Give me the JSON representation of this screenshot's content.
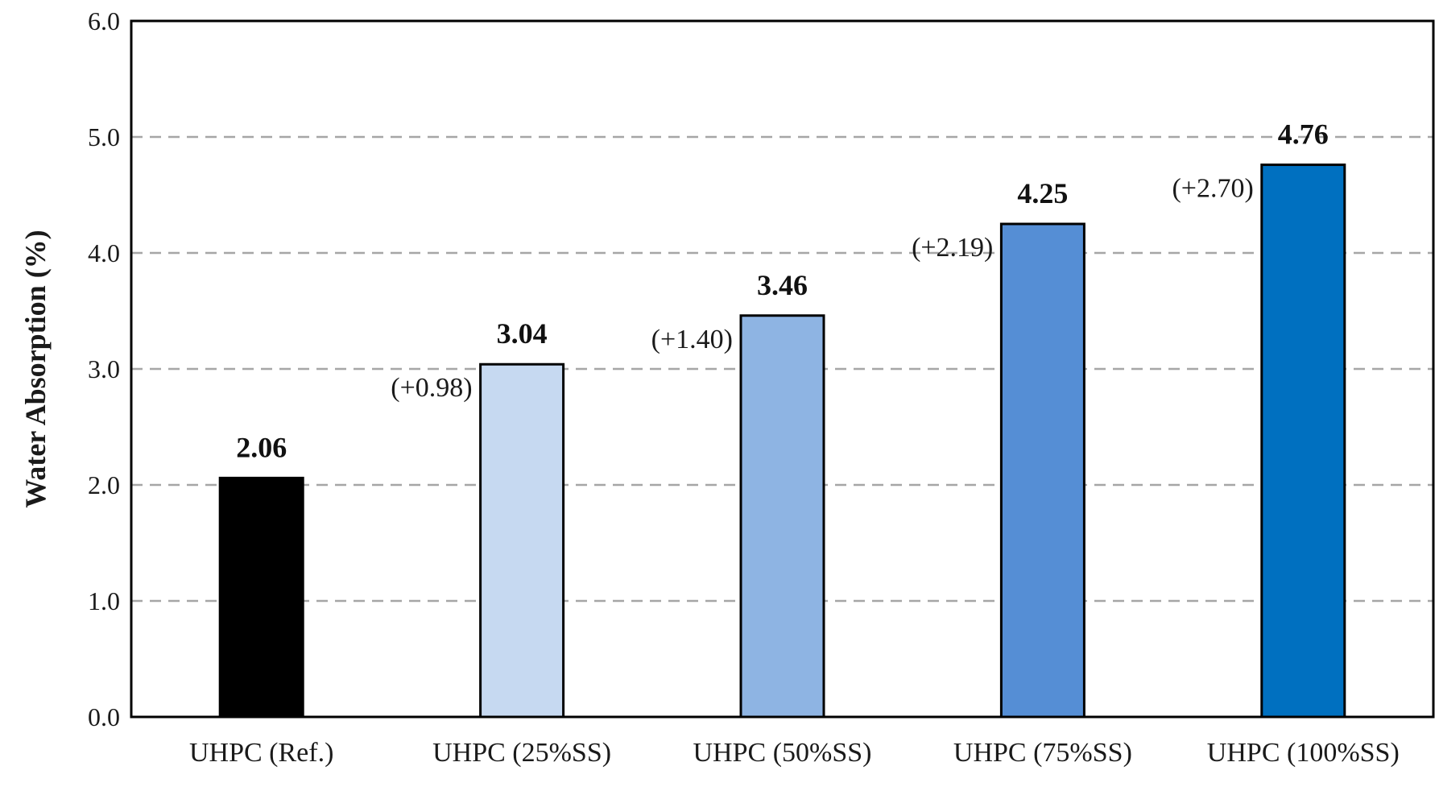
{
  "chart_data": {
    "type": "bar",
    "title": "",
    "xlabel": "",
    "ylabel": "Water Absorption (%)",
    "ylim": [
      0,
      6
    ],
    "yticks": [
      "0.0",
      "1.0",
      "2.0",
      "3.0",
      "4.0",
      "5.0",
      "6.0"
    ],
    "grid": "horizontal dashed",
    "categories": [
      "UHPC (Ref.)",
      "UHPC (25%SS)",
      "UHPC (50%SS)",
      "UHPC (75%SS)",
      "UHPC (100%SS)"
    ],
    "values": [
      2.06,
      3.04,
      3.46,
      4.25,
      4.76
    ],
    "value_labels": [
      "2.06",
      "3.04",
      "3.46",
      "4.25",
      "4.76"
    ],
    "difference_labels": [
      "",
      "(+0.98)",
      "(+1.40)",
      "(+2.19)",
      "(+2.70)"
    ],
    "bar_colors": [
      "#000000",
      "#c6d9f1",
      "#8eb4e3",
      "#558ed5",
      "#0070c0"
    ]
  }
}
